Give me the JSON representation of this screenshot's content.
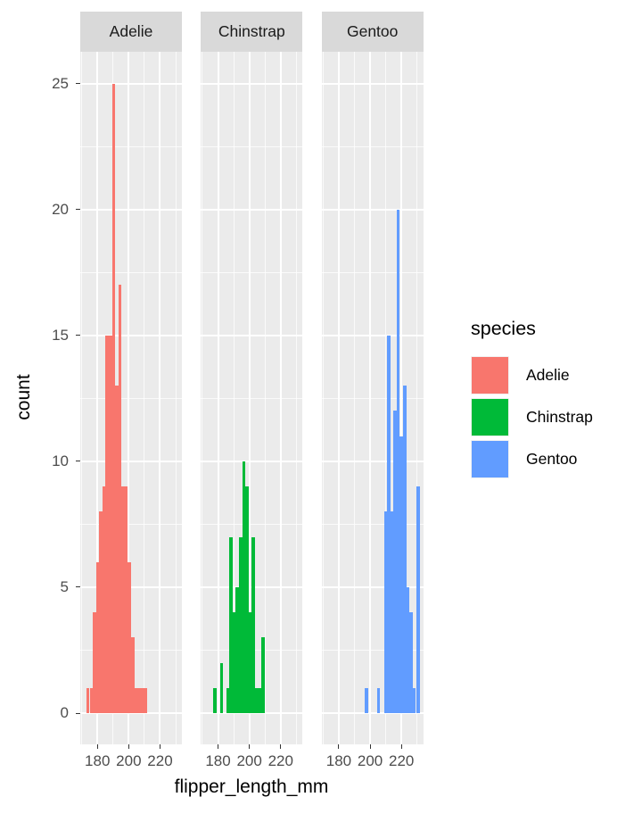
{
  "figure": {
    "x_axis_title": "flipper_length_mm",
    "y_axis_title": "count",
    "background": "#FFFFFF",
    "panel_bg": "#EBEBEB",
    "strip_bg": "#D9D9D9",
    "grid_color": "#FFFFFF",
    "tick_label_color": "#4D4D4D",
    "tick_mark_color": "#333333"
  },
  "legend": {
    "title": "species",
    "entries": [
      {
        "label": "Adelie",
        "color": "#F8766D"
      },
      {
        "label": "Chinstrap",
        "color": "#00BA38"
      },
      {
        "label": "Gentoo",
        "color": "#619CFF"
      }
    ]
  },
  "chart_data": {
    "type": "bar",
    "subtype": "faceted-histogram",
    "title": "",
    "xlabel": "flipper_length_mm",
    "ylabel": "count",
    "legend_title": "species",
    "legend_position": "right",
    "grid": true,
    "xlim": [
      169.05,
      233.95
    ],
    "ylim": [
      -1.25,
      26.25
    ],
    "x_ticks": [
      180,
      200,
      220
    ],
    "x_minor": [
      170,
      190,
      210,
      230
    ],
    "y_ticks": [
      0,
      5,
      10,
      15,
      20,
      25
    ],
    "y_minor": [
      2.5,
      7.5,
      12.5,
      17.5,
      22.5
    ],
    "binwidth": 2.03,
    "facets": [
      {
        "name": "Adelie",
        "color": "#F8766D",
        "bins": [
          [
            174.0,
            1
          ],
          [
            176.1,
            1
          ],
          [
            178.1,
            4
          ],
          [
            180.1,
            6
          ],
          [
            182.2,
            8
          ],
          [
            184.2,
            9
          ],
          [
            186.2,
            15
          ],
          [
            188.3,
            15
          ],
          [
            190.3,
            25
          ],
          [
            192.3,
            13
          ],
          [
            194.4,
            17
          ],
          [
            196.4,
            9
          ],
          [
            198.4,
            9
          ],
          [
            200.5,
            6
          ],
          [
            202.5,
            3
          ],
          [
            204.6,
            1
          ],
          [
            206.6,
            1
          ],
          [
            208.6,
            1
          ],
          [
            210.7,
            1
          ]
        ]
      },
      {
        "name": "Chinstrap",
        "color": "#00BA38",
        "bins": [
          [
            178.1,
            1
          ],
          [
            182.2,
            2
          ],
          [
            186.2,
            1
          ],
          [
            188.3,
            7
          ],
          [
            190.3,
            4
          ],
          [
            192.3,
            5
          ],
          [
            194.4,
            7
          ],
          [
            196.4,
            10
          ],
          [
            198.4,
            9
          ],
          [
            200.5,
            4
          ],
          [
            202.5,
            7
          ],
          [
            204.6,
            1
          ],
          [
            206.6,
            1
          ],
          [
            208.6,
            3
          ]
        ]
      },
      {
        "name": "Gentoo",
        "color": "#619CFF",
        "bins": [
          [
            197.7,
            1
          ],
          [
            205.3,
            1
          ],
          [
            210.0,
            8
          ],
          [
            212.0,
            15
          ],
          [
            214.0,
            8
          ],
          [
            216.0,
            12
          ],
          [
            218.0,
            20
          ],
          [
            220.0,
            11
          ],
          [
            222.2,
            13
          ],
          [
            224.2,
            5
          ],
          [
            226.2,
            4
          ],
          [
            228.2,
            1
          ],
          [
            230.6,
            9
          ]
        ]
      }
    ]
  }
}
